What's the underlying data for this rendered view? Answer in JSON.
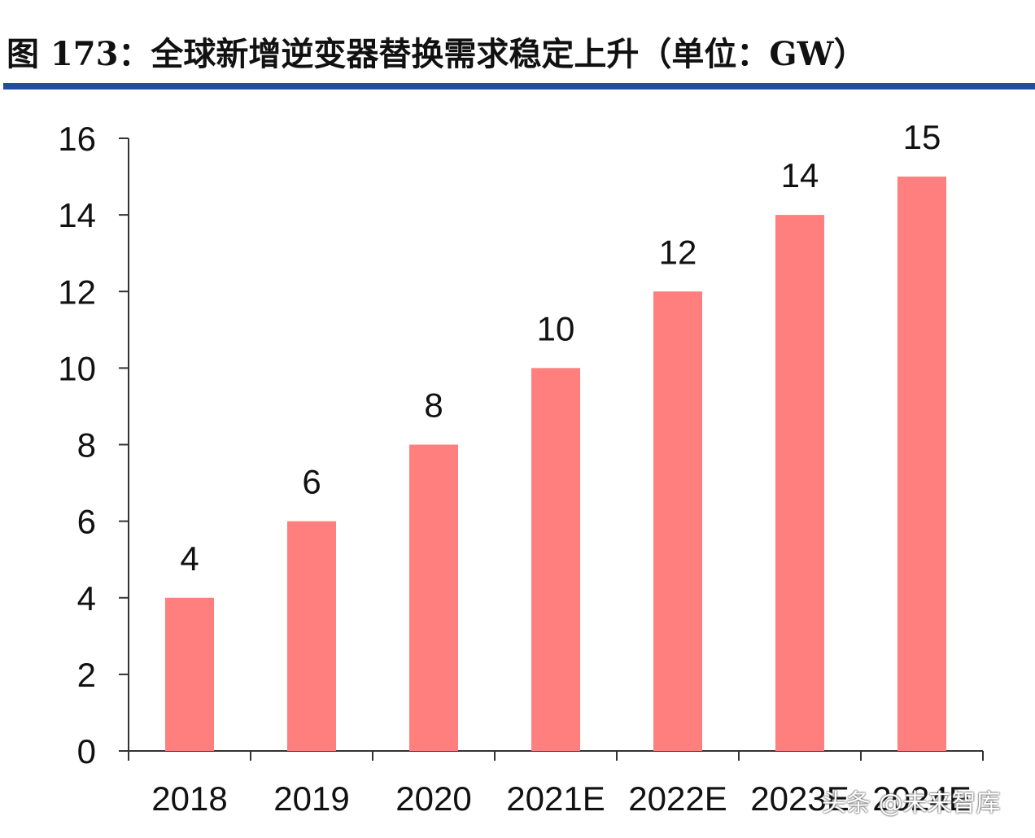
{
  "title": "图 173：全球新增逆变器替换需求稳定上升（单位：GW）",
  "watermark": "头条 @未来智库",
  "colors": {
    "bar": "#ff7f7f",
    "title_rule": "#1f4e9a",
    "axis": "#333333"
  },
  "chart_data": {
    "type": "bar",
    "title": "图 173：全球新增逆变器替换需求稳定上升（单位：GW）",
    "xlabel": "",
    "ylabel": "",
    "categories": [
      "2018",
      "2019",
      "2020",
      "2021E",
      "2022E",
      "2023E",
      "2024E"
    ],
    "values": [
      4,
      6,
      8,
      10,
      12,
      14,
      15
    ],
    "data_labels": [
      "4",
      "6",
      "8",
      "10",
      "12",
      "14",
      "15"
    ],
    "ylim": [
      0,
      16
    ],
    "yticks": [
      "0",
      "2",
      "4",
      "6",
      "8",
      "10",
      "12",
      "14",
      "16"
    ],
    "grid": false,
    "legend": "none"
  }
}
